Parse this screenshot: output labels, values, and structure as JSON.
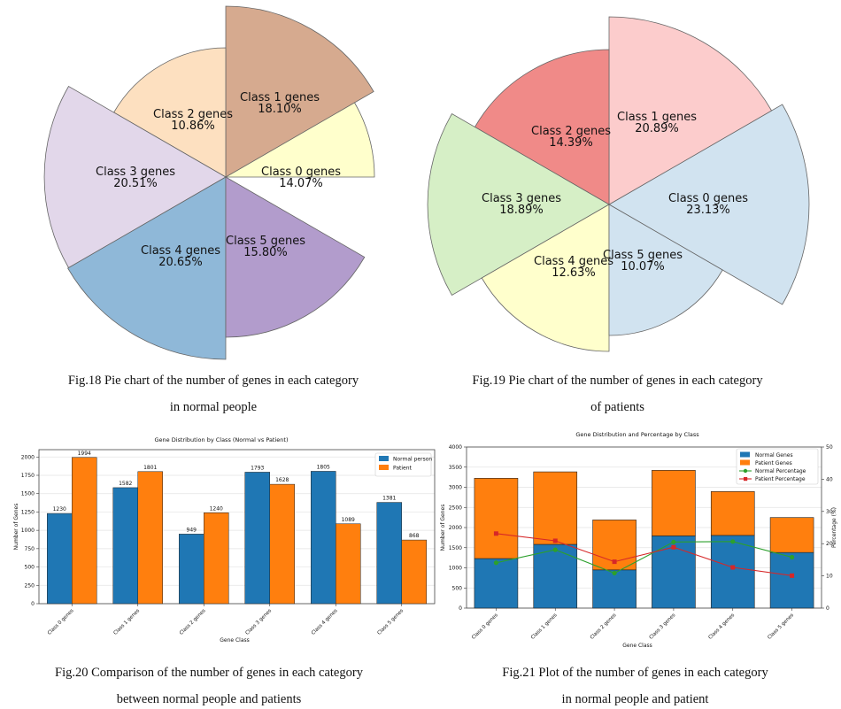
{
  "figures": {
    "fig18": {
      "caption_line1": "Fig.18 Pie chart of the number of genes in each category",
      "caption_line2": "in normal people"
    },
    "fig19": {
      "caption_line1": "Fig.19 Pie chart of the number of genes in each category",
      "caption_line2": "of patients"
    },
    "fig20": {
      "caption_line1": "Fig.20 Comparison of the number of genes in each category",
      "caption_line2": "between normal people and patients"
    },
    "fig21": {
      "caption_line1": "Fig.21 Plot of the number of genes in each category",
      "caption_line2": "in normal people and patient"
    }
  },
  "chart_data": [
    {
      "id": "fig18",
      "type": "pie",
      "title": "",
      "variant": "polar-area",
      "slices": [
        {
          "label": "Class 0 genes",
          "pct": "14.07%",
          "value": 14.07,
          "color": "#ffffcc"
        },
        {
          "label": "Class 1 genes",
          "pct": "18.10%",
          "value": 18.1,
          "color": "#d6aa8f"
        },
        {
          "label": "Class 2 genes",
          "pct": "10.86%",
          "value": 10.86,
          "color": "#fde0c0"
        },
        {
          "label": "Class 3 genes",
          "pct": "20.51%",
          "value": 20.51,
          "color": "#e2d7ea"
        },
        {
          "label": "Class 4 genes",
          "pct": "20.65%",
          "value": 20.65,
          "color": "#8fb8d8"
        },
        {
          "label": "Class 5 genes",
          "pct": "15.80%",
          "value": 15.8,
          "color": "#b29ccc"
        }
      ]
    },
    {
      "id": "fig19",
      "type": "pie",
      "title": "",
      "variant": "polar-area",
      "slices": [
        {
          "label": "Class 0 genes",
          "pct": "23.13%",
          "value": 23.13,
          "color": "#d1e3f0"
        },
        {
          "label": "Class 1 genes",
          "pct": "20.89%",
          "value": 20.89,
          "color": "#fccccc"
        },
        {
          "label": "Class 2 genes",
          "pct": "14.39%",
          "value": 14.39,
          "color": "#f08a88"
        },
        {
          "label": "Class 3 genes",
          "pct": "18.89%",
          "value": 18.89,
          "color": "#d6efc6"
        },
        {
          "label": "Class 4 genes",
          "pct": "12.63%",
          "value": 12.63,
          "color": "#ffffcc"
        },
        {
          "label": "Class 5 genes",
          "pct": "10.07%",
          "value": 10.07,
          "color": "#d1e3f0"
        }
      ]
    },
    {
      "id": "fig20",
      "type": "bar",
      "title": "Gene Distribution by Class (Normal vs Patient)",
      "xlabel": "Gene Class",
      "ylabel": "Number of Genes",
      "ylim": [
        0,
        2100
      ],
      "yticks": [
        0,
        250,
        500,
        750,
        1000,
        1250,
        1500,
        1750,
        2000
      ],
      "categories": [
        "Class 0 genes",
        "Class 1 genes",
        "Class 2 genes",
        "Class 3 genes",
        "Class 4 genes",
        "Class 5 genes"
      ],
      "series": [
        {
          "name": "Normal person",
          "color": "#1f77b4",
          "values": [
            1230,
            1582,
            949,
            1793,
            1805,
            1381
          ]
        },
        {
          "name": "Patient",
          "color": "#ff7f0e",
          "values": [
            1994,
            1801,
            1240,
            1628,
            1089,
            868
          ]
        }
      ],
      "grid": true,
      "legend": "top-right"
    },
    {
      "id": "fig21",
      "type": "bar",
      "title": "Gene Distribution and Percentage by Class",
      "xlabel": "Gene Class",
      "ylabel": "Number of Genes",
      "y2label": "Percentage (%)",
      "ylim": [
        0,
        4000
      ],
      "y2lim": [
        0,
        50
      ],
      "yticks": [
        0,
        500,
        1000,
        1500,
        2000,
        2500,
        3000,
        3500,
        4000
      ],
      "y2ticks": [
        0,
        10,
        20,
        30,
        40,
        50
      ],
      "categories": [
        "Class 0 genes",
        "Class 1 genes",
        "Class 2 genes",
        "Class 3 genes",
        "Class 4 genes",
        "Class 5 genes"
      ],
      "stacked_series": [
        {
          "name": "Normal Genes",
          "color": "#1f77b4",
          "values": [
            1230,
            1582,
            949,
            1793,
            1805,
            1381
          ]
        },
        {
          "name": "Patient Genes",
          "color": "#ff7f0e",
          "values": [
            1994,
            1801,
            1240,
            1628,
            1089,
            868
          ]
        }
      ],
      "line_series": [
        {
          "name": "Normal Percentage",
          "color": "#2ca02c",
          "marker": "circle",
          "values": [
            14.07,
            18.1,
            10.86,
            20.51,
            20.65,
            15.8
          ]
        },
        {
          "name": "Patient Percentage",
          "color": "#d62728",
          "marker": "square",
          "values": [
            23.13,
            20.89,
            14.39,
            18.89,
            12.63,
            10.07
          ]
        }
      ],
      "grid": true,
      "legend": "top-right"
    }
  ]
}
